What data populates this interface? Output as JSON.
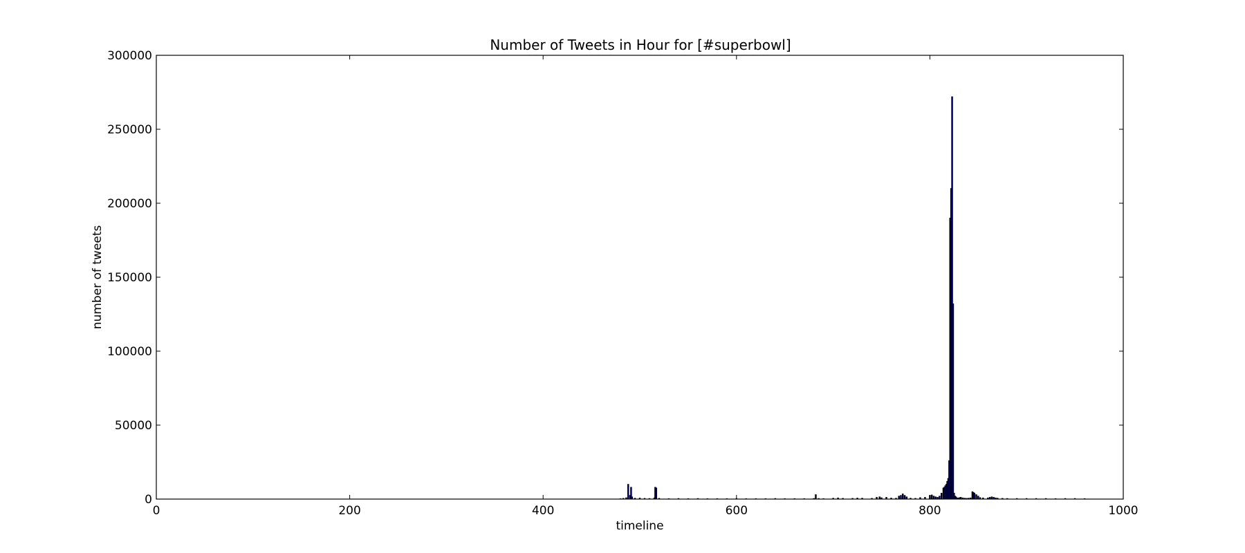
{
  "chart_data": {
    "type": "bar",
    "title": "Number of Tweets in Hour for [#superbowl]",
    "xlabel": "timeline",
    "ylabel": "number of tweets",
    "xlim": [
      0,
      1000
    ],
    "ylim": [
      0,
      300000
    ],
    "xticks": [
      0,
      200,
      400,
      600,
      800,
      1000
    ],
    "yticks": [
      0,
      50000,
      100000,
      150000,
      200000,
      250000,
      300000
    ],
    "grid": false,
    "bar_color": "#000080",
    "series": [
      {
        "x": [
          480,
          483,
          486,
          488,
          490,
          491,
          492,
          495,
          500,
          505,
          510,
          515,
          516,
          517,
          520,
          530,
          540,
          550,
          560,
          570,
          580,
          590,
          600,
          610,
          620,
          630,
          640,
          650,
          660,
          670,
          680,
          682,
          685,
          690,
          700,
          705,
          710,
          720,
          725,
          730,
          740,
          745,
          748,
          750,
          755,
          760,
          765,
          768,
          770,
          772,
          774,
          776,
          780,
          785,
          790,
          795,
          800,
          802,
          804,
          806,
          808,
          810,
          812,
          814,
          815,
          816,
          817,
          818,
          819,
          820,
          821,
          822,
          823,
          824,
          825,
          826,
          827,
          828,
          829,
          830,
          831,
          832,
          834,
          836,
          838,
          840,
          842,
          844,
          845,
          846,
          848,
          850,
          852,
          855,
          860,
          862,
          864,
          866,
          868,
          870,
          875,
          880,
          890,
          900,
          910,
          920,
          930,
          940,
          950,
          960
        ],
        "values": [
          300,
          500,
          900,
          10000,
          2500,
          8000,
          1500,
          600,
          700,
          500,
          400,
          800,
          8000,
          7500,
          500,
          300,
          400,
          300,
          400,
          300,
          300,
          300,
          400,
          300,
          300,
          300,
          400,
          300,
          300,
          300,
          400,
          3000,
          400,
          300,
          600,
          800,
          500,
          500,
          700,
          600,
          500,
          1200,
          1500,
          900,
          1200,
          700,
          600,
          2000,
          2500,
          3500,
          2500,
          1500,
          600,
          500,
          1000,
          1200,
          2500,
          2800,
          2000,
          1500,
          1200,
          2000,
          4000,
          7500,
          8000,
          9000,
          10000,
          12000,
          14000,
          26000,
          190000,
          210000,
          272000,
          132000,
          4000,
          2000,
          1500,
          800,
          600,
          800,
          1000,
          1200,
          800,
          600,
          500,
          600,
          800,
          5000,
          4500,
          4000,
          3000,
          2000,
          1000,
          800,
          800,
          1200,
          1500,
          1200,
          800,
          600,
          500,
          400,
          400,
          400,
          400,
          400,
          300,
          400,
          400,
          300
        ]
      }
    ]
  }
}
